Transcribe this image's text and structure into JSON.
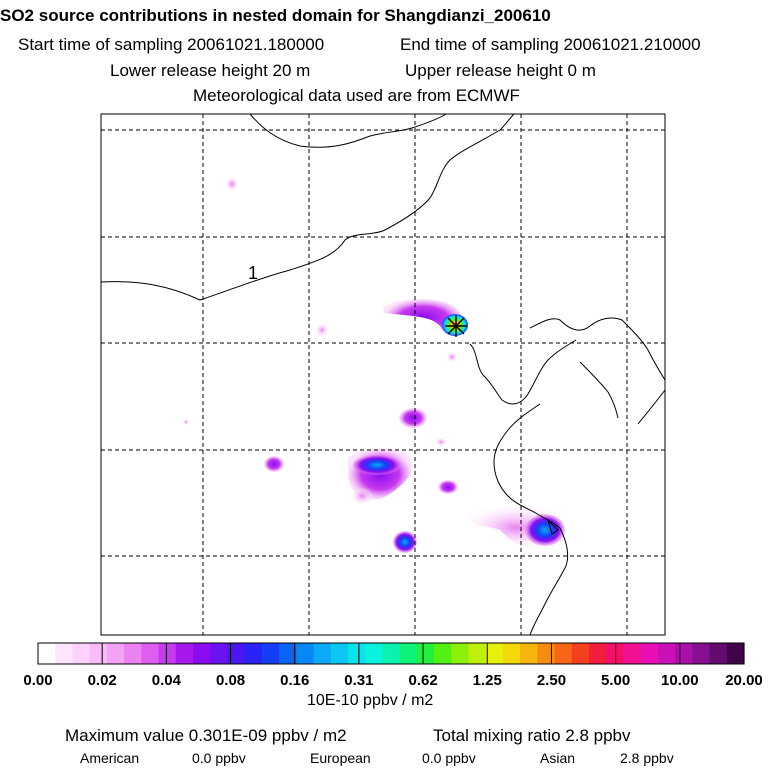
{
  "header": {
    "title": "SO2 source contributions in nested domain for Shangdianzi_200610",
    "start_label": "Start time of sampling 20061021.180000",
    "end_label": "End time of sampling 20061021.210000",
    "lower_label": "Lower release height   20 m",
    "upper_label": "Upper release height    0 m",
    "met_label": "Meteorological data used are from ECMWF"
  },
  "map": {
    "region_label": "1"
  },
  "chart_data": {
    "type": "heatmap",
    "title": "SO2 source contributions in nested domain for Shangdianzi_200610",
    "grid": true,
    "colorbar": {
      "ticks": [
        "0.00",
        "0.02",
        "0.04",
        "0.08",
        "0.16",
        "0.31",
        "0.62",
        "1.25",
        "2.50",
        "5.00",
        "10.00",
        "20.00"
      ],
      "units": "10E-10 ppbv / m2",
      "colors": [
        "#ffffff",
        "#fde6fd",
        "#fbd2fb",
        "#f8bcf8",
        "#f2a3f5",
        "#ea82f2",
        "#de5ef0",
        "#c83af0",
        "#a818ee",
        "#8a0cf0",
        "#6a12f2",
        "#4a16f4",
        "#2a22f6",
        "#163ef6",
        "#0a66f2",
        "#0888f4",
        "#0aaaf6",
        "#0ac8f2",
        "#0ae2ec",
        "#08f2de",
        "#0af2b0",
        "#0ef27a",
        "#22f03c",
        "#54f012",
        "#8cf00a",
        "#bef00a",
        "#e6f00a",
        "#f4d80a",
        "#f6b40c",
        "#f68c10",
        "#f66616",
        "#f4401e",
        "#f41c3c",
        "#f4106a",
        "#f41094",
        "#e810b4",
        "#cc10b8",
        "#aa10a8",
        "#861090",
        "#620c70",
        "#3e0648"
      ]
    },
    "receptor": "Shangdianzi",
    "maximum_value_label": "Maximum value  0.301E-09 ppbv / m2",
    "total_mixing_ratio_label": "Total mixing ratio       2.8 ppbv",
    "contributions": [
      {
        "name": "American",
        "value": "0.0 ppbv"
      },
      {
        "name": "European",
        "value": "0.0 ppbv"
      },
      {
        "name": "Asian",
        "value": "2.8 ppbv"
      }
    ]
  },
  "colors": {
    "frame": "#000000",
    "grid": "#000000"
  }
}
